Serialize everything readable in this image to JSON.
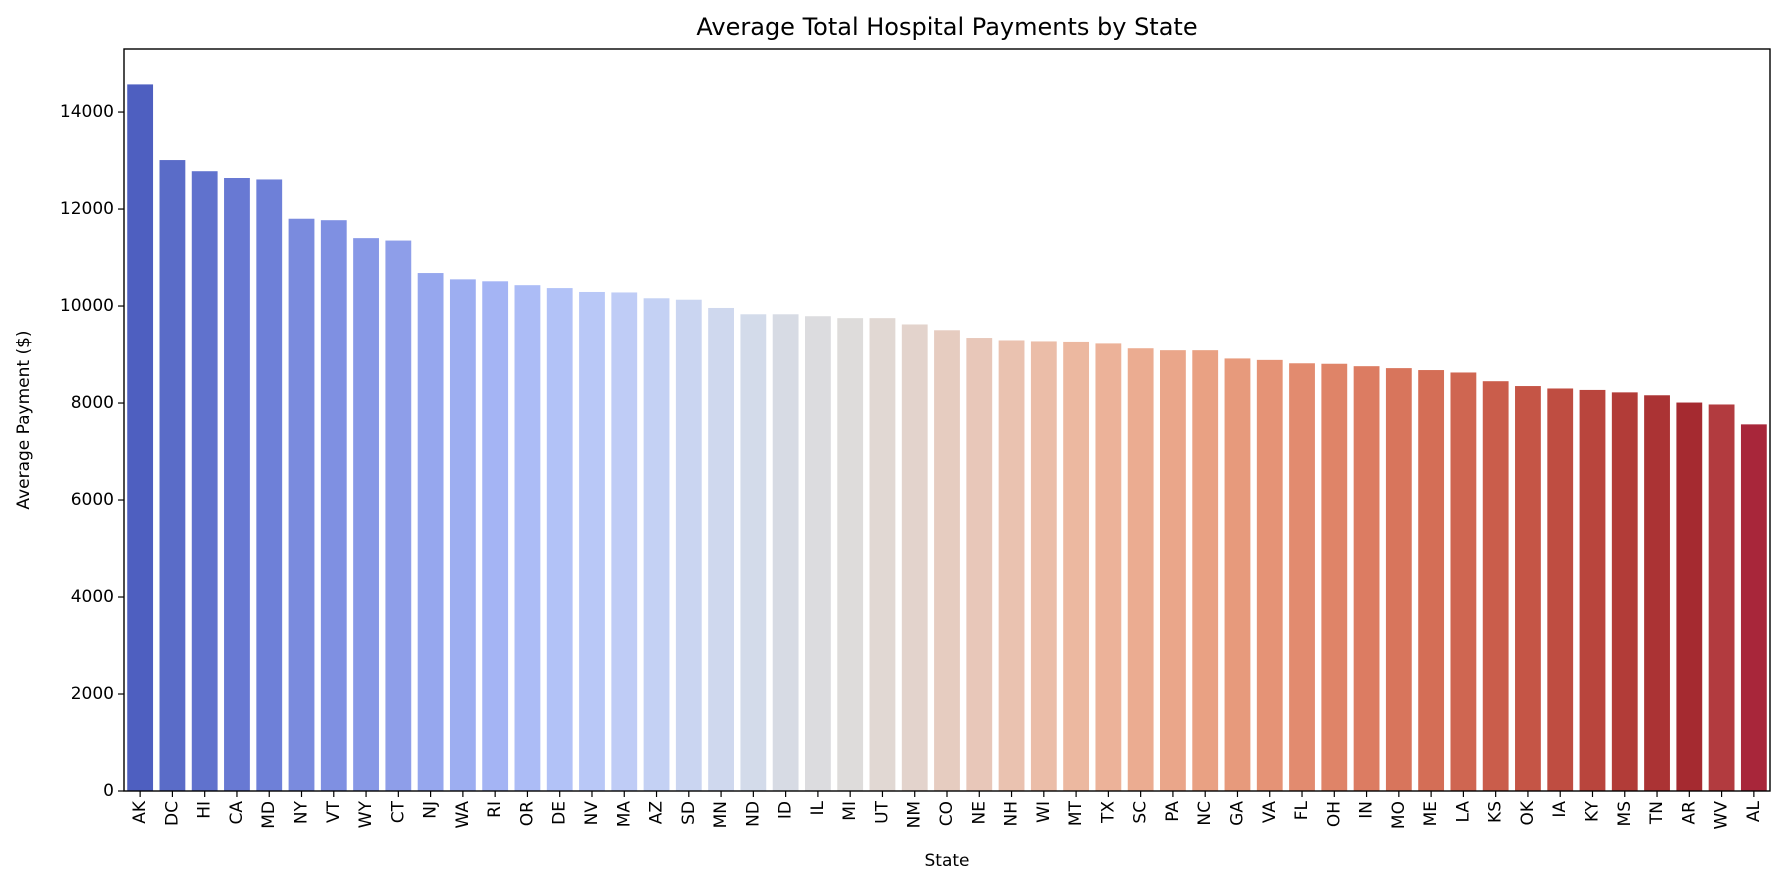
{
  "chart_data": {
    "type": "bar",
    "title": "Average Total Hospital Payments by State",
    "xlabel": "State",
    "ylabel": "Average Payment ($)",
    "ylim": [
      0,
      15300
    ],
    "yticks": [
      "0",
      "2000",
      "4000",
      "6000",
      "8000",
      "10000",
      "12000",
      "14000"
    ],
    "grid": false,
    "legend": "none",
    "color_map": "coolwarm (blue to red, left to right)",
    "categories": [
      "AK",
      "DC",
      "HI",
      "CA",
      "MD",
      "NY",
      "VT",
      "WY",
      "CT",
      "NJ",
      "WA",
      "RI",
      "OR",
      "DE",
      "NV",
      "MA",
      "AZ",
      "SD",
      "MN",
      "ND",
      "ID",
      "IL",
      "MI",
      "UT",
      "NM",
      "CO",
      "NE",
      "NH",
      "WI",
      "MT",
      "TX",
      "SC",
      "PA",
      "NC",
      "GA",
      "VA",
      "FL",
      "OH",
      "IN",
      "MO",
      "ME",
      "LA",
      "KS",
      "OK",
      "IA",
      "KY",
      "MS",
      "TN",
      "AR",
      "WV",
      "AL"
    ],
    "values": [
      14570,
      13010,
      12780,
      12640,
      12610,
      11800,
      11770,
      11400,
      11350,
      10680,
      10550,
      10510,
      10430,
      10370,
      10290,
      10280,
      10160,
      10130,
      9960,
      9830,
      9830,
      9790,
      9750,
      9750,
      9620,
      9500,
      9340,
      9290,
      9270,
      9260,
      9230,
      9130,
      9090,
      9090,
      8920,
      8890,
      8820,
      8810,
      8760,
      8720,
      8680,
      8630,
      8450,
      8350,
      8300,
      8270,
      8220,
      8160,
      8010,
      7970,
      7560
    ],
    "colors": [
      "#4e5fc0",
      "#5a6cc8",
      "#6072cd",
      "#6879d3",
      "#6e80d8",
      "#7a8bde",
      "#7f90e2",
      "#8798e6",
      "#8e9ee9",
      "#96a7ee",
      "#9daef1",
      "#a4b4f4",
      "#acbcf6",
      "#b2c2f7",
      "#b9c8f7",
      "#bfccf6",
      "#c4d1f4",
      "#cad5f1",
      "#cfd8ee",
      "#d3dbea",
      "#d7dbe4",
      "#dcdcdf",
      "#dedcdb",
      "#e1d8d3",
      "#e3d3cc",
      "#e6ccc0",
      "#e8c7b9",
      "#eac2b0",
      "#ebbda8",
      "#ecb8a0",
      "#ecb299",
      "#ebac91",
      "#eaa68a",
      "#e9a183",
      "#e79a7c",
      "#e59376",
      "#e28b6f",
      "#df8468",
      "#dc7c62",
      "#d8755c",
      "#d46e56",
      "#cf6651",
      "#ca5d4b",
      "#c55546",
      "#bf4d41",
      "#b9453d",
      "#b23c38",
      "#ab3334",
      "#a52a30",
      "#b23b3f",
      "#a8263a"
    ]
  }
}
